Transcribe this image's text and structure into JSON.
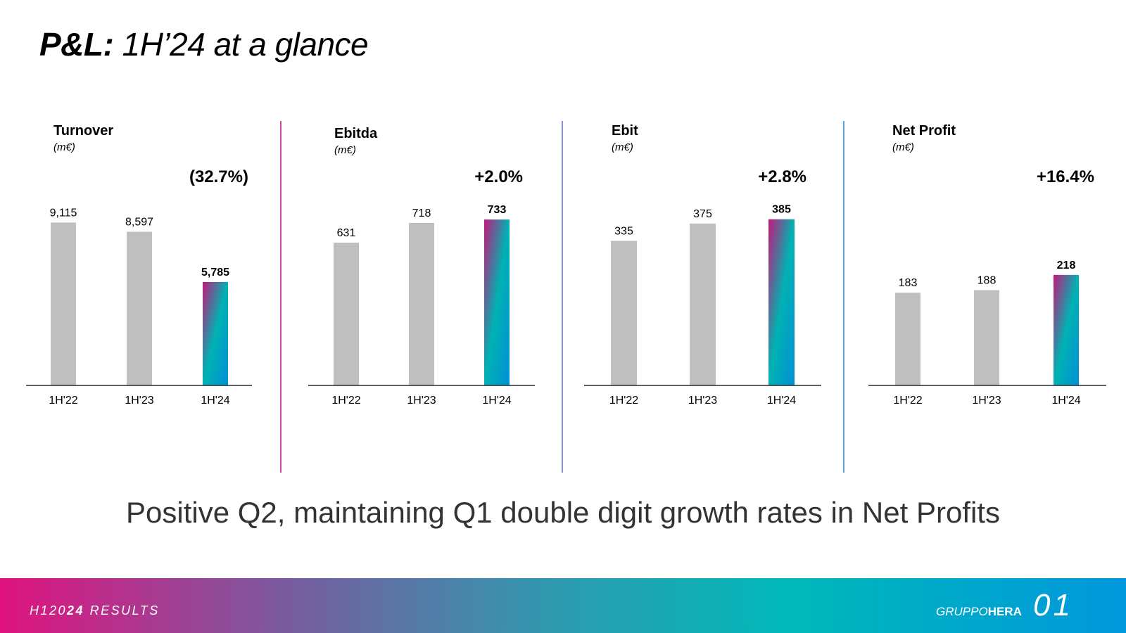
{
  "header": {
    "title_bold": "P&L:",
    "title_rest": "1H’24 at a glance"
  },
  "colors": {
    "bar_grey": "#bfbfbf",
    "grad_start": "#c2187a",
    "grad_mid": "#00b2b2",
    "grad_end": "#0090d8",
    "divider": "#6fa8dc"
  },
  "chart_data": [
    {
      "type": "bar",
      "title": "Turnover",
      "unit": "(m€)",
      "change": "(32.7%)",
      "categories": [
        "1H'22",
        "1H'23",
        "1H'24"
      ],
      "values": [
        9115,
        8597,
        5785
      ],
      "value_labels": [
        "9,115",
        "8,597",
        "5,785"
      ],
      "highlight_index": 2,
      "ylim": [
        0,
        9800
      ]
    },
    {
      "type": "bar",
      "title": "Ebitda",
      "unit": "(m€)",
      "change": "+2.0%",
      "categories": [
        "1H'22",
        "1H'23",
        "1H'24"
      ],
      "values": [
        631,
        718,
        733
      ],
      "value_labels": [
        "631",
        "718",
        "733"
      ],
      "highlight_index": 2,
      "ylim": [
        0,
        780
      ]
    },
    {
      "type": "bar",
      "title": "Ebit",
      "unit": "(m€)",
      "change": "+2.8%",
      "categories": [
        "1H'22",
        "1H'23",
        "1H'24"
      ],
      "values": [
        335,
        375,
        385
      ],
      "value_labels": [
        "335",
        "375",
        "385"
      ],
      "highlight_index": 2,
      "ylim": [
        0,
        409
      ]
    },
    {
      "type": "bar",
      "title": "Net Profit",
      "unit": "(m€)",
      "change": "+16.4%",
      "categories": [
        "1H'22",
        "1H'23",
        "1H'24"
      ],
      "values": [
        183,
        188,
        218
      ],
      "value_labels": [
        "183",
        "188",
        "218"
      ],
      "highlight_index": 2,
      "ylim": [
        0,
        340
      ]
    }
  ],
  "subtitle": "Positive Q2, maintaining Q1 double digit growth rates in Net Profits",
  "footer": {
    "left_a": "H120",
    "left_b": "24",
    "left_c": " RESULTS",
    "brand_a": "GRUPPO",
    "brand_b": "HERA",
    "page": "01"
  }
}
